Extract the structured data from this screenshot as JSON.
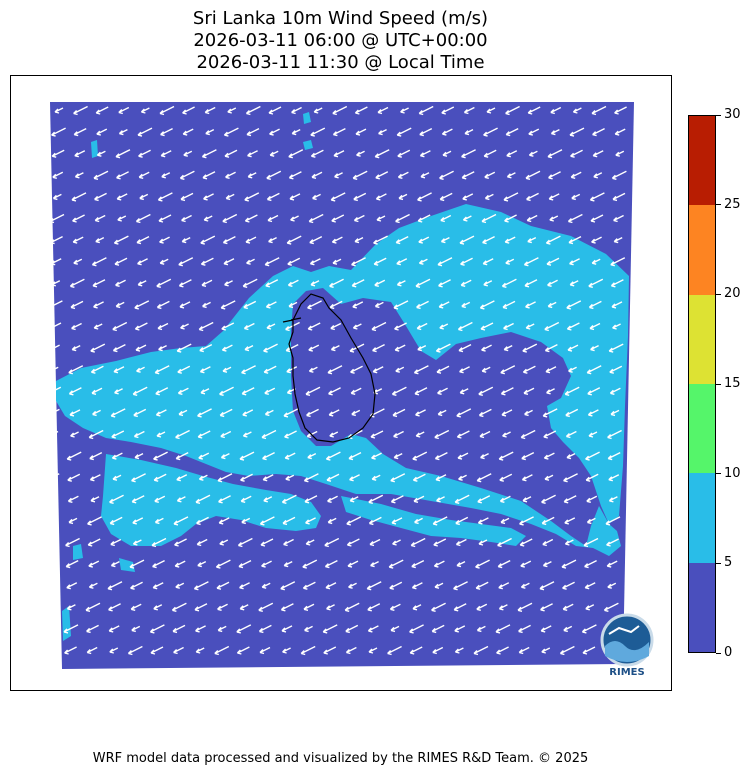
{
  "header": {
    "title_line1": "Sri Lanka 10m Wind Speed (m/s)",
    "title_line2": "2026-03-11 06:00 @ UTC+00:00",
    "title_line3": "2026-03-11 11:30 @ Local Time"
  },
  "colorbar": {
    "levels": [
      {
        "min": 0,
        "max": 5,
        "color": "#4a4fbd"
      },
      {
        "min": 5,
        "max": 10,
        "color": "#29bde8"
      },
      {
        "min": 10,
        "max": 15,
        "color": "#55f56a"
      },
      {
        "min": 15,
        "max": 20,
        "color": "#dde233"
      },
      {
        "min": 20,
        "max": 25,
        "color": "#fd8422"
      },
      {
        "min": 25,
        "max": 30,
        "color": "#b81d02"
      }
    ],
    "tick_labels": [
      "0",
      "5",
      "10",
      "15",
      "20",
      "25",
      "30"
    ]
  },
  "map": {
    "land_outline_color": "#000000",
    "arrow_color": "#ffffff",
    "predominant_wind_direction": "south-west"
  },
  "logo": {
    "text": "RIMES",
    "icon": "rimes-logo-icon"
  },
  "footer": {
    "credit": "WRF model data processed and visualized by the RIMES R&D Team. © 2025"
  }
}
